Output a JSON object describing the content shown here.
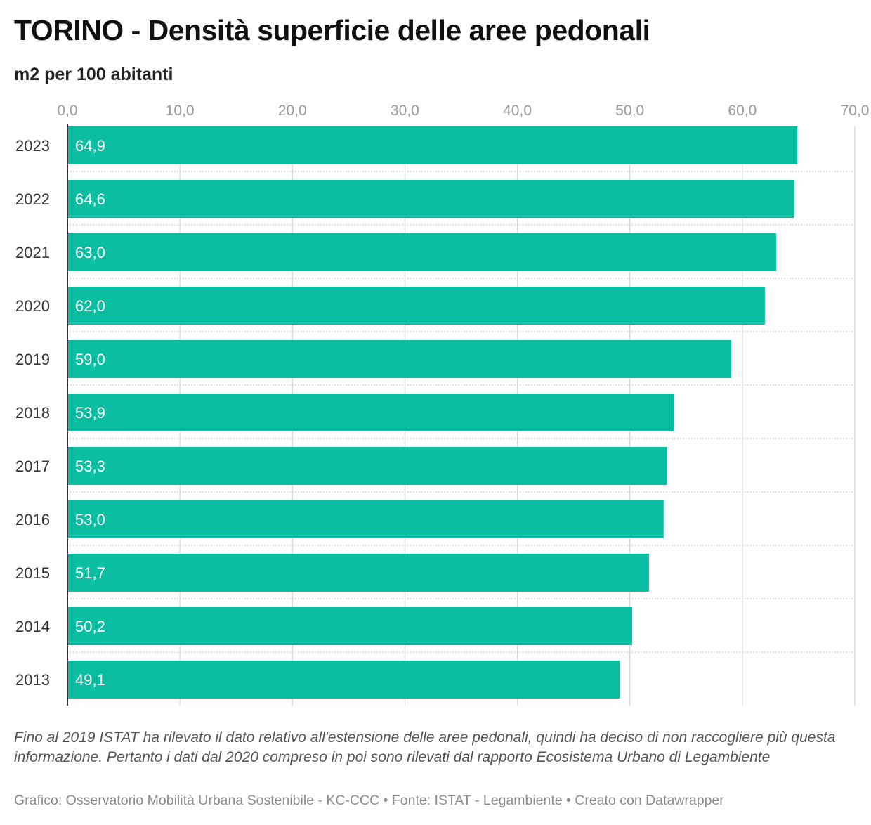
{
  "header": {
    "title": "TORINO - Densità superficie delle aree pedonali",
    "subtitle": "m2 per 100 abitanti"
  },
  "colors": {
    "bar": "#0bbda1",
    "bar_label": "#ffffff",
    "grid": "#d9d9d9",
    "tick_label": "#999999",
    "category_label": "#333333",
    "axis_line": "#333333"
  },
  "chart_data": {
    "type": "bar",
    "orientation": "horizontal",
    "title": "TORINO - Densità superficie delle aree pedonali",
    "subtitle": "m2 per 100 abitanti",
    "categories": [
      "2023",
      "2022",
      "2021",
      "2020",
      "2019",
      "2018",
      "2017",
      "2016",
      "2015",
      "2014",
      "2013"
    ],
    "values": [
      64.9,
      64.6,
      63.0,
      62.0,
      59.0,
      53.9,
      53.3,
      53.0,
      51.7,
      50.2,
      49.1
    ],
    "value_labels": [
      "64,9",
      "64,6",
      "63,0",
      "62,0",
      "59,0",
      "53,9",
      "53,3",
      "53,0",
      "51,7",
      "50,2",
      "49,1"
    ],
    "x_ticks": [
      0,
      10,
      20,
      30,
      40,
      50,
      60,
      70
    ],
    "x_tick_labels": [
      "0,0",
      "10,0",
      "20,0",
      "30,0",
      "40,0",
      "50,0",
      "60,0",
      "70,0"
    ],
    "xlim": [
      0,
      70
    ],
    "axis_position": "top",
    "grid": true
  },
  "notes": {
    "text": "Fino al 2019 ISTAT ha rilevato il dato relativo all'estensione delle aree pedonali, quindi ha deciso di non raccogliere più questa informazione. Pertanto i dati dal 2020 compreso in poi sono rilevati dal rapporto Ecosistema Urbano di Legambiente"
  },
  "footer": {
    "text": "Grafico: Osservatorio Mobilità Urbana Sostenibile - KC-CCC • Fonte: ISTAT - Legambiente • Creato con Datawrapper"
  }
}
